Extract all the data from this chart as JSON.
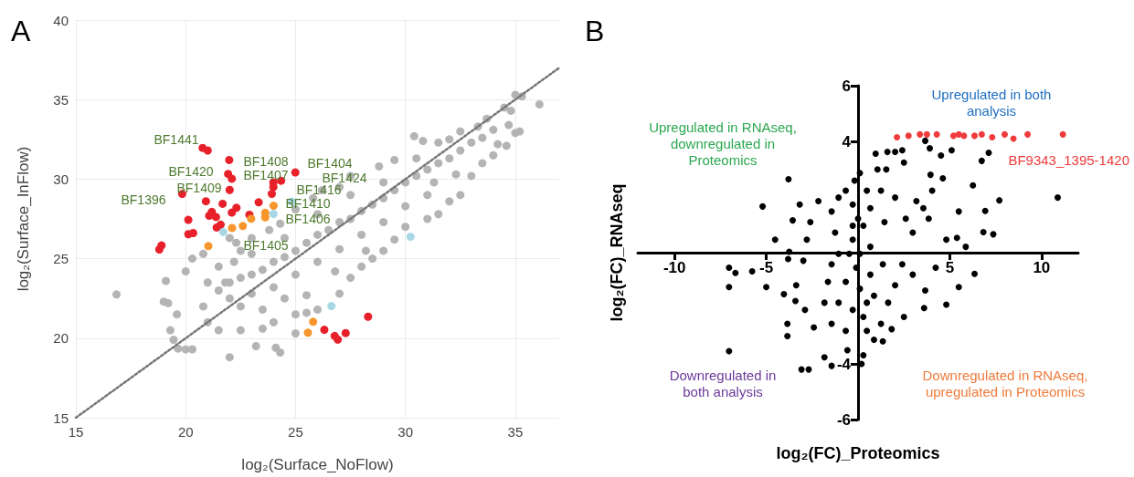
{
  "chart_data": [
    {
      "type": "scatter",
      "xlabel": "log₂(Surface_NoFlow)",
      "ylabel": "log₂(Surface_InFlow)",
      "xlim": [
        15,
        37
      ],
      "ylim": [
        15,
        40
      ],
      "xticks": [
        15,
        20,
        25,
        30,
        35
      ],
      "yticks": [
        15,
        20,
        25,
        30,
        35,
        40
      ],
      "grid": true,
      "legend": false,
      "marker": "circle",
      "annotations": [
        "A",
        "BF1441",
        "BF1420",
        "BF1409",
        "BF1396",
        "BF1408",
        "BF1407",
        "BF1404",
        "BF1424",
        "BF1416",
        "BF1410",
        "BF1406",
        "BF1405"
      ],
      "series": [
        {
          "color": "#b4b4b4",
          "x": [
            16.85,
            19.1,
            19.3,
            19.45,
            19.65,
            20.0,
            20.3,
            22.0,
            24.3,
            24.1,
            23.2,
            19.0,
            19.2,
            19.6,
            20.0,
            20.3,
            20.8,
            22.0,
            22.2,
            21.8,
            20.8,
            21.0,
            21.5,
            22.5,
            23.5,
            24.0,
            25.0,
            25.0,
            25.5,
            25.5,
            26.0,
            27.0,
            27.5,
            28.0,
            28.5,
            29.0,
            29.5,
            30.0,
            31.0,
            31.5,
            32.0,
            32.5,
            33.0,
            33.5,
            34.0,
            34.2,
            34.6,
            35.0,
            35.2,
            34.7,
            34.5,
            34.8,
            35.0,
            35.3,
            36.1,
            33.7,
            33.3,
            32.5,
            31.5,
            30.4,
            30.8,
            29.5,
            28.8,
            27.5,
            27.0,
            26.2,
            25.8,
            25.0,
            24.3,
            23.8,
            23.0,
            22.5,
            22.3,
            21.0,
            21.5,
            22.0,
            22.5,
            23.0,
            23.5,
            24.0,
            24.5,
            25.0,
            25.5,
            26.0,
            26.5,
            27.0,
            27.5,
            28.0,
            28.5,
            29.0,
            29.5,
            30.0,
            30.5,
            31.0,
            31.5,
            32.0,
            32.5,
            33.0,
            33.5,
            34.0,
            22.0,
            23.0,
            24.0,
            25.0,
            26.0,
            27.0,
            28.0,
            29.0,
            30.0,
            31.0,
            21.5,
            23.0,
            24.5,
            26.0,
            27.5,
            29.0,
            30.5,
            32.0,
            22.5,
            23.5,
            24.5,
            26.8,
            28.2,
            31.3,
            32.3
          ],
          "values": [
            22.75,
            23.6,
            20.5,
            19.9,
            19.35,
            19.3,
            19.3,
            18.8,
            19.1,
            19.4,
            19.5,
            22.3,
            22.2,
            21.5,
            24.2,
            25.0,
            25.3,
            26.3,
            24.8,
            23.5,
            22.0,
            21.0,
            20.5,
            20.5,
            20.6,
            21.0,
            20.3,
            21.5,
            22.7,
            21.6,
            21.8,
            22.8,
            23.8,
            24.5,
            25.0,
            25.5,
            26.2,
            27.0,
            27.5,
            27.8,
            28.6,
            29.0,
            30.2,
            31.0,
            31.5,
            32.2,
            32.1,
            32.9,
            33.0,
            33.4,
            34.5,
            34.3,
            35.3,
            35.2,
            34.7,
            33.8,
            33.3,
            33.0,
            32.3,
            32.7,
            32.4,
            31.2,
            30.8,
            30.2,
            29.5,
            29.3,
            28.8,
            28.1,
            27.2,
            26.8,
            26.3,
            25.5,
            26.0,
            23.5,
            23.0,
            23.5,
            23.8,
            24.0,
            24.3,
            24.8,
            25.1,
            25.5,
            26.0,
            26.5,
            26.8,
            27.3,
            27.5,
            28.0,
            28.4,
            28.8,
            29.3,
            29.8,
            30.2,
            30.6,
            31.0,
            31.3,
            31.8,
            32.3,
            32.6,
            33.1,
            22.5,
            22.8,
            23.2,
            24.0,
            24.8,
            25.6,
            26.5,
            27.3,
            28.3,
            29.0,
            24.5,
            25.3,
            26.3,
            27.8,
            29.0,
            29.8,
            31.3,
            32.5,
            22.0,
            21.8,
            22.5,
            24.2,
            25.5,
            29.8,
            30.3
          ]
        },
        {
          "color": "#e8202a",
          "x": [
            20.77,
            21.0,
            21.98,
            21.93,
            22.1,
            22.0,
            24.99,
            24.34,
            23.99,
            23.99,
            23.92,
            19.84,
            20.92,
            21.68,
            23.32,
            22.31,
            22.1,
            21.19,
            21.07,
            21.38,
            22.9,
            20.12,
            21.59,
            21.41,
            20.12,
            20.34,
            18.9,
            18.8,
            28.3,
            26.31,
            26.78,
            26.92,
            27.28
          ],
          "values": [
            31.96,
            31.8,
            31.2,
            30.33,
            30.03,
            29.32,
            30.42,
            29.9,
            29.8,
            29.5,
            29.07,
            29.07,
            28.61,
            28.45,
            28.54,
            28.2,
            27.9,
            27.94,
            27.7,
            27.62,
            27.76,
            27.44,
            27.14,
            26.96,
            26.54,
            26.61,
            25.83,
            25.58,
            21.35,
            20.53,
            20.14,
            19.91,
            20.32
          ]
        },
        {
          "color": "#f7962d",
          "x": [
            24.0,
            23.62,
            23.62,
            22.98,
            22.6,
            22.11,
            21.03,
            25.8,
            25.56
          ],
          "values": [
            28.33,
            27.88,
            27.6,
            27.51,
            27.05,
            26.93,
            25.79,
            21.03,
            20.34
          ]
        },
        {
          "color": "#a8d8e6",
          "x": [
            24.82,
            24.0,
            21.71,
            30.23,
            26.63
          ],
          "values": [
            28.59,
            27.81,
            26.68,
            26.38,
            22.02
          ]
        },
        {
          "type": "line",
          "color": "#777777",
          "line_style": "dotted",
          "marker": "none",
          "x": [
            15,
            37
          ],
          "values": [
            15,
            37
          ]
        }
      ]
    },
    {
      "type": "scatter",
      "xlabel": "log₂(FC)_Proteomics",
      "ylabel": "log₂(FC)_RNAseq",
      "xlim": [
        -12,
        12
      ],
      "ylim": [
        -6,
        6
      ],
      "xticks": [
        -10,
        -5,
        5,
        10
      ],
      "yticks": [
        -6,
        -4,
        4,
        6
      ],
      "grid": false,
      "legend": false,
      "marker": "circle",
      "annotations": [
        "B",
        "Upregulated in both\nanalysis",
        "Upregulated in RNAseq,\ndownregulated in\nProteomics",
        "Downregulated in\nboth analysis",
        "Downregulated in RNAseq,\nupregulated in Proteomics"
      ],
      "series": [
        {
          "color": "#000000",
          "x": [
            -3.79,
            -5.2,
            -7.03,
            -6.68,
            -7.03,
            -7.03,
            -5.77,
            -5.0,
            -4.52,
            -3.75,
            -3.81,
            -3.18,
            -3.56,
            -3.85,
            -3.85,
            -3.08,
            -2.69,
            -2.16,
            -2.6,
            -2.79,
            -2.98,
            -3.37,
            -4.04,
            -3.41,
            -2.89,
            -2.41,
            -1.83,
            -1.44,
            -0.58,
            0.29,
            0.19,
            0.87,
            1.35,
            1.83,
            2.5,
            3.6,
            4.81,
            3.66,
            4.23,
            5.49,
            6.35,
            5.87,
            5.39,
            4.81,
            6.83,
            7.37,
            6.93,
            5.49,
            7.7,
            10.88,
            6.26,
            6.74,
            7.12,
            5.1,
            4.52,
            3.91,
            3.66,
            4.62,
            4.04,
            3.95,
            3.56,
            3.85,
            3.18,
            2.5,
            2.41,
            2.02,
            1.6,
            0.96,
            1.54,
            1.06,
            0.1,
            -0.19,
            2.02,
            2.6,
            2.98,
            2.41,
            2.98,
            2.02,
            1.64,
            1.25,
            -1.44,
            -1.83,
            -1.64,
            -1.44,
            -1.25,
            -1.44,
            -1.06,
            -0.67,
            -0.29,
            0.48,
            0.67,
            0.29,
            -0.29,
            0.67,
            -0.1,
            -0.67,
            0.1,
            0.67,
            -1.06,
            -0.29,
            0.29,
            -0.67,
            0.48,
            0.87,
            1.35,
            1.44,
            1.25,
            0.0,
            0.1,
            -0.48,
            -0.29,
            -1.06,
            0.48
          ],
          "values": [
            2.64,
            1.66,
            -0.54,
            -0.73,
            -1.24,
            -3.54,
            -0.67,
            -1.24,
            0.47,
            0.03,
            -0.23,
            1.73,
            1.16,
            -2.56,
            -3.0,
            -4.2,
            -4.2,
            1.85,
            1.1,
            0.47,
            -0.29,
            -1.17,
            -1.49,
            -1.74,
            -2.06,
            -2.69,
            -3.76,
            -4.07,
            -3.51,
            -3.69,
            -4.0,
            -3.13,
            -3.19,
            -2.75,
            -2.31,
            -1.99,
            -1.87,
            -1.36,
            -0.54,
            -1.24,
            -0.76,
            0.21,
            0.53,
            0.47,
            0.74,
            0.66,
            1.5,
            1.48,
            1.88,
            1.98,
            2.42,
            3.3,
            3.59,
            3.68,
            3.49,
            3.75,
            4.02,
            2.67,
            2.23,
            2.8,
            1.6,
            1.22,
            1.85,
            3.24,
            3.68,
            3.62,
            3.62,
            3.56,
            2.99,
            2.99,
            2.86,
            2.59,
            1.98,
            1.22,
            0.72,
            -0.42,
            -0.79,
            -1.17,
            -1.8,
            -2.56,
            -2.56,
            -1.8,
            -1.05,
            -0.42,
            0.72,
            1.48,
            1.98,
            2.23,
            1.73,
            2.23,
            1.6,
            0.97,
            0.47,
            0.21,
            -0.54,
            -1.05,
            -1.3,
            -0.79,
            -1.8,
            -2.06,
            -2.31,
            -2.81,
            -2.81,
            -1.55,
            -0.42,
            1.1,
            2.23,
            1.22,
            -0.04,
            -0.04,
            0.97,
            -0.04,
            -1.8
          ]
        },
        {
          "name": "BF9343_1395-1420",
          "color": "#ef3b3b",
          "x": [
            2.12,
            2.75,
            3.37,
            3.75,
            4.29,
            5.2,
            5.49,
            5.77,
            6.35,
            6.74,
            7.31,
            7.99,
            8.47,
            9.24,
            11.16
          ],
          "values": [
            4.15,
            4.2,
            4.25,
            4.25,
            4.25,
            4.2,
            4.25,
            4.2,
            4.2,
            4.25,
            4.15,
            4.25,
            4.1,
            4.25,
            4.25
          ]
        }
      ]
    }
  ]
}
